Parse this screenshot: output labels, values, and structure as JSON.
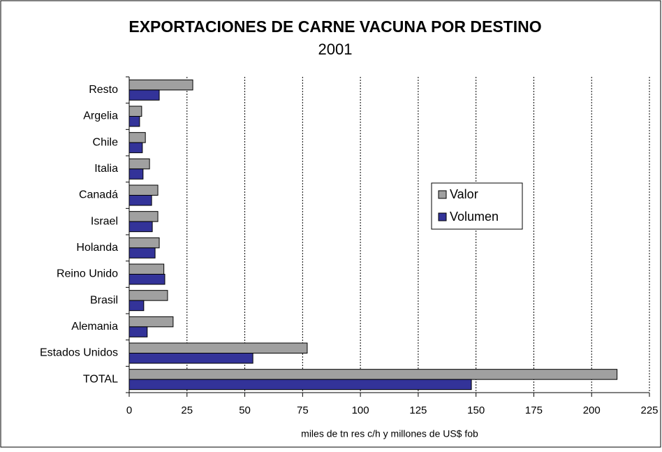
{
  "chart_data": {
    "type": "barh",
    "title": "EXPORTACIONES DE CARNE VACUNA POR DESTINO",
    "subtitle": "2001",
    "x_label": "miles de tn res c/h y millones de US$ fob",
    "categories": [
      "Resto",
      "Argelia",
      "Chile",
      "Italia",
      "Canadá",
      "Israel",
      "Holanda",
      "Reino Unido",
      "Brasil",
      "Alemania",
      "Estados Unidos",
      "TOTAL"
    ],
    "series": [
      {
        "name": "Valor",
        "color": "#a0a0a0",
        "values": [
          27.5,
          5.4,
          7,
          8.8,
          12.4,
          12.4,
          13,
          15,
          16.6,
          19,
          77,
          211
        ]
      },
      {
        "name": "Volumen",
        "color": "#333399",
        "values": [
          13,
          4.5,
          5.7,
          6,
          9.7,
          10,
          11.2,
          15.4,
          6.3,
          7.8,
          53.5,
          148
        ]
      }
    ],
    "xlim": [
      0,
      225
    ],
    "xticks": [
      0,
      25,
      50,
      75,
      100,
      125,
      150,
      175,
      200,
      225
    ],
    "grid": true,
    "legend": "right"
  }
}
